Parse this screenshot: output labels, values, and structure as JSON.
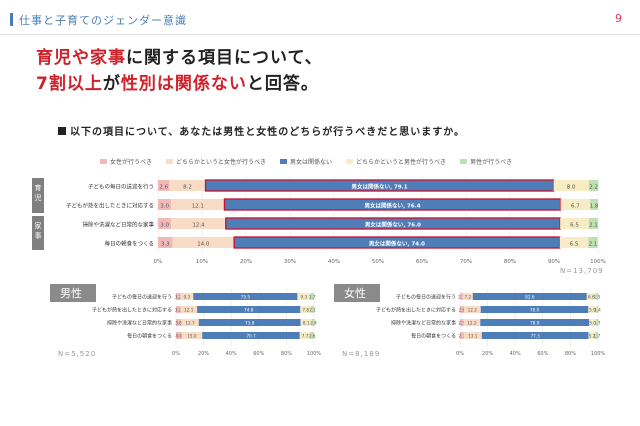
{
  "header": {
    "title": "仕事と子育てのジェンダー意識",
    "page": "9"
  },
  "headline": {
    "line1_red": "育児や家事",
    "line1_rest": "に関する項目について、",
    "line2_red1": "7割以上",
    "line2_mid": "が",
    "line2_red2": "性別は関係ない",
    "line2_rest": "と回答。"
  },
  "question": "以下の項目について、あなたは男性と女性のどちらが行うべきだと思いますか。",
  "legend": [
    {
      "label": "女性が行うべき",
      "color": "#f2b9b9"
    },
    {
      "label": "どちらかというと女性が行うべき",
      "color": "#f9dcc6"
    },
    {
      "label": "男女は関係ない",
      "color": "#4f7db8"
    },
    {
      "label": "どちらかというと男性が行うべき",
      "color": "#f7ecc3"
    },
    {
      "label": "男性が行うべき",
      "color": "#bfe0b0"
    }
  ],
  "groups": [
    {
      "label": "育児"
    },
    {
      "label": "家事"
    }
  ],
  "chart_data": [
    {
      "type": "bar",
      "orientation": "horizontal-stacked-100",
      "categories": [
        "子どもの毎日の送迎を行う",
        "子どもが熱を出したときに対応する",
        "掃除や洗濯など日常的な家事",
        "毎日の朝食をつくる"
      ],
      "series": [
        {
          "name": "女性が行うべき",
          "values": [
            2.6,
            3.0,
            3.0,
            3.3
          ]
        },
        {
          "name": "どちらかというと女性が行うべき",
          "values": [
            8.2,
            12.1,
            12.4,
            14.0
          ]
        },
        {
          "name": "男女は関係ない",
          "values": [
            79.1,
            76.4,
            76.0,
            74.0
          ]
        },
        {
          "name": "どちらかというと男性が行うべき",
          "values": [
            8.0,
            6.7,
            6.5,
            6.5
          ]
        },
        {
          "name": "男性が行うべき",
          "values": [
            2.2,
            1.8,
            2.1,
            2.1
          ]
        }
      ],
      "center_labels": [
        "男女は関係ない, 79.1",
        "男女は関係ない, 76.4",
        "男女は関係ない, 76.0",
        "男女は関係ない, 74.0"
      ],
      "xticks": [
        "0%",
        "10%",
        "20%",
        "30%",
        "40%",
        "50%",
        "60%",
        "70%",
        "80%",
        "90%",
        "100%"
      ],
      "xlim": [
        0,
        100
      ],
      "n": "N=13,709"
    },
    {
      "type": "bar",
      "title": "男性",
      "orientation": "horizontal-stacked-100",
      "categories": [
        "子どもの毎日の送迎を行う",
        "子どもが熱を出したときに対応する",
        "掃除や洗濯など日常的な家事",
        "毎日の朝食をつくる"
      ],
      "series": [
        {
          "name": "女性が行うべき",
          "values": [
            3.2,
            3.2,
            3.8,
            4.0
          ]
        },
        {
          "name": "どちらかというと女性が行うべき",
          "values": [
            9.3,
            12.1,
            12.7,
            15.0
          ]
        },
        {
          "name": "男女は関係ない",
          "values": [
            75.5,
            74.8,
            73.8,
            70.7
          ]
        },
        {
          "name": "どちらかというと男性が行うべき",
          "values": [
            9.3,
            7.8,
            8.1,
            7.7
          ]
        },
        {
          "name": "男性が行うべき",
          "values": [
            2.7,
            2.1,
            2.4,
            2.6
          ]
        }
      ],
      "xticks": [
        "0%",
        "20%",
        "40%",
        "60%",
        "80%",
        "100%"
      ],
      "xlim": [
        0,
        100
      ],
      "n": "N=5,520"
    },
    {
      "type": "bar",
      "title": "女性",
      "orientation": "horizontal-stacked-100",
      "categories": [
        "子どもの毎日の送迎を行う",
        "子どもが熱を出したときに対応する",
        "掃除や洗濯など日常的な家事",
        "毎日の朝食をつくる"
      ],
      "series": [
        {
          "name": "女性が行うべき",
          "values": [
            2.1,
            2.8,
            2.5,
            2.7
          ]
        },
        {
          "name": "どちらかというと女性が行うべき",
          "values": [
            7.2,
            12.2,
            12.2,
            13.1
          ]
        },
        {
          "name": "男女は関係ない",
          "values": [
            82.6,
            78.0,
            78.9,
            77.3
          ]
        },
        {
          "name": "どちらかというと男性が行うべき",
          "values": [
            6.6,
            5.9,
            5.0,
            5.2
          ]
        },
        {
          "name": "男性が行うべき",
          "values": [
            1.5,
            1.4,
            1.7,
            1.7
          ]
        }
      ],
      "value_labels": [
        [
          "2.1",
          "7.2",
          "82.6",
          "6.6",
          "1.5"
        ],
        [
          "2.8",
          "12.2",
          "78.0",
          "5.9",
          "1.4"
        ],
        [
          "2.5",
          "12.2",
          "78.9",
          "5.0",
          "1.7"
        ],
        [
          "2.7",
          "13.1",
          "77.3",
          "5.2",
          "1.7"
        ]
      ],
      "xticks": [
        "0%",
        "20%",
        "40%",
        "60%",
        "80%",
        "100%"
      ],
      "xlim": [
        0,
        100
      ],
      "n": "N=8,189"
    }
  ]
}
